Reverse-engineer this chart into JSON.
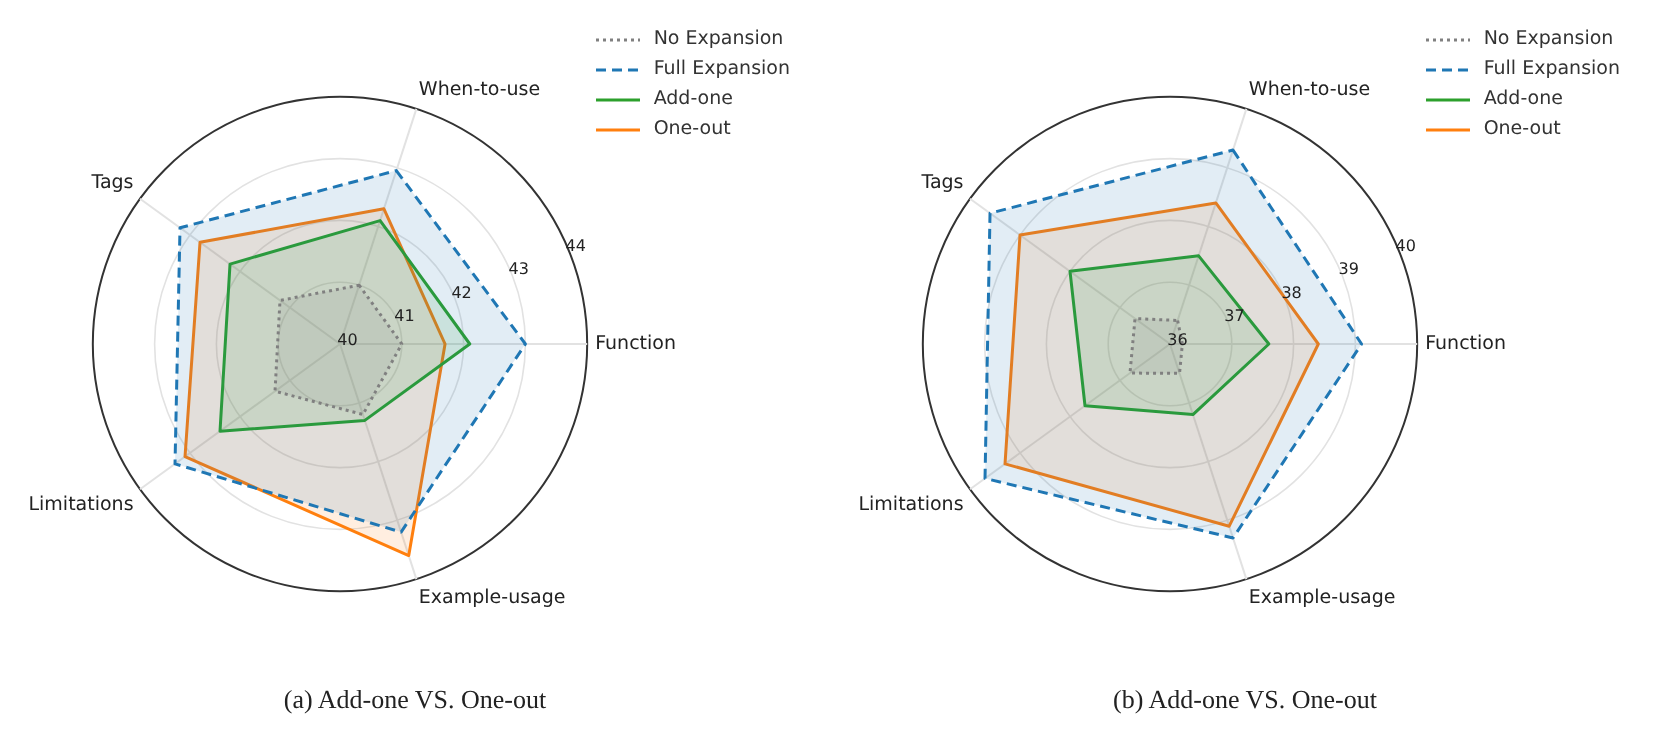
{
  "chart_data": [
    {
      "type": "radar",
      "title": "(a) Add-one VS. One-out",
      "categories": [
        "When-to-use",
        "Function",
        "Example-usage",
        "Limitations",
        "Tags"
      ],
      "ylim": [
        40,
        44
      ],
      "yticks": [
        40,
        41,
        42,
        43,
        44
      ],
      "grid": true,
      "legend": "top right",
      "series": [
        {
          "name": "No Expansion",
          "color": "#808080",
          "line_style": "dotted",
          "values": [
            41.0,
            41.0,
            41.2,
            41.3,
            41.2
          ]
        },
        {
          "name": "Full Expansion",
          "color": "#1f77b4",
          "line_style": "dashed",
          "values": [
            42.95,
            43.0,
            43.2,
            43.3,
            43.2
          ]
        },
        {
          "name": "Add-one",
          "color": "#2ca02c",
          "line_style": "solid",
          "values": [
            42.1,
            42.1,
            41.3,
            42.4,
            42.2
          ]
        },
        {
          "name": "One-out",
          "color": "#ff7f0e",
          "line_style": "solid",
          "values": [
            42.3,
            41.7,
            43.6,
            43.1,
            42.8
          ]
        }
      ]
    },
    {
      "type": "radar",
      "title": "(b) Add-one VS. One-out",
      "categories": [
        "When-to-use",
        "Function",
        "Example-usage",
        "Limitations",
        "Tags"
      ],
      "ylim": [
        36,
        40
      ],
      "yticks": [
        36,
        37,
        38,
        39,
        40
      ],
      "grid": true,
      "legend": "top right",
      "series": [
        {
          "name": "No Expansion",
          "color": "#808080",
          "line_style": "dotted",
          "values": [
            36.4,
            36.2,
            36.5,
            36.8,
            36.7
          ]
        },
        {
          "name": "Full Expansion",
          "color": "#1f77b4",
          "line_style": "dashed",
          "values": [
            39.3,
            39.1,
            39.3,
            39.7,
            39.6
          ]
        },
        {
          "name": "Add-one",
          "color": "#2ca02c",
          "line_style": "solid",
          "values": [
            37.5,
            37.6,
            37.2,
            37.7,
            38.0
          ]
        },
        {
          "name": "One-out",
          "color": "#ff7f0e",
          "line_style": "solid",
          "values": [
            38.4,
            38.4,
            39.1,
            39.3,
            39.0
          ]
        }
      ]
    }
  ]
}
